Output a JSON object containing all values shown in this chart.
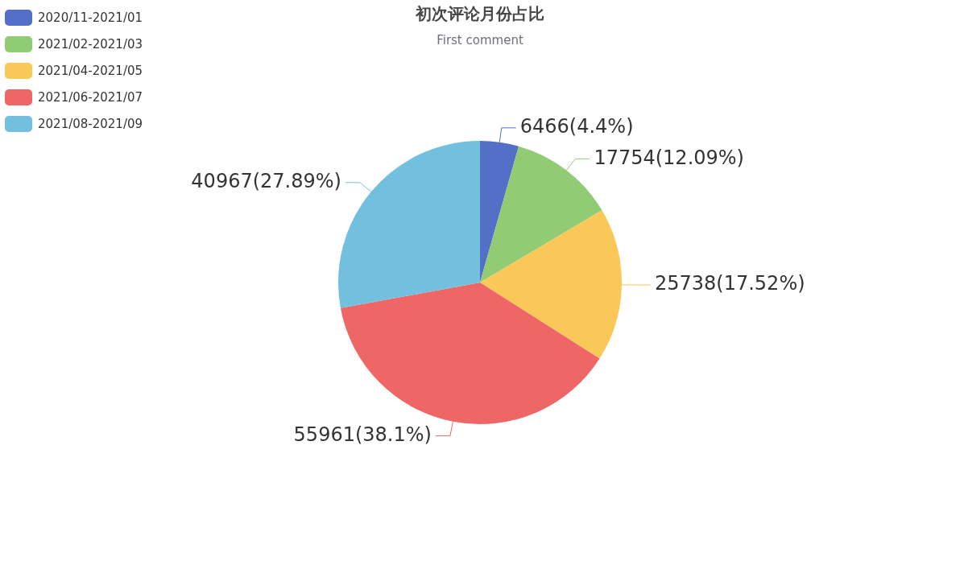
{
  "chart_data": {
    "type": "pie",
    "title": "初次评论月份占比",
    "subtitle": "First comment",
    "categories": [
      "2020/11-2021/01",
      "2021/02-2021/03",
      "2021/04-2021/05",
      "2021/06-2021/07",
      "2021/08-2021/09"
    ],
    "values": [
      6466,
      17754,
      25738,
      55961,
      40967
    ],
    "colors": [
      "#5470c6",
      "#91cc75",
      "#fac858",
      "#ee6666",
      "#73c0de"
    ],
    "value_labels": [
      "6466(4.4%)",
      "17754(12.09%)",
      "25738(17.52%)",
      "55961(38.1%)",
      "40967(27.89%)"
    ],
    "legend": "top left"
  }
}
